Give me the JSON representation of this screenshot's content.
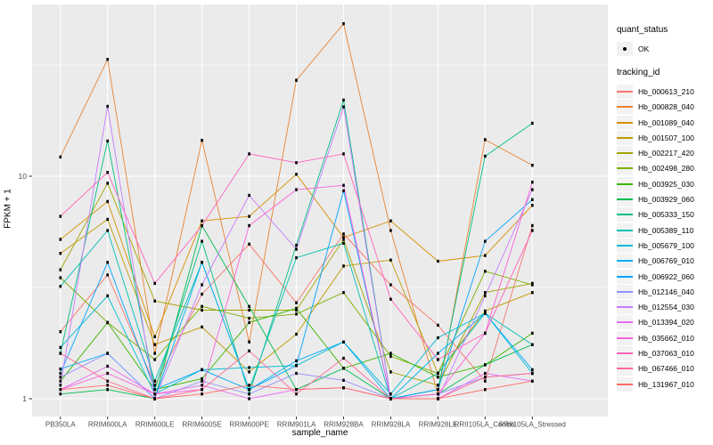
{
  "figure": {
    "background": "#FFFFFF",
    "panel_background": "#EBEBEB",
    "gridline_color": "#FFFFFF",
    "tick_color": "#333333",
    "tick_label_color": "#4D4D4D",
    "axis_title_color": "#000000",
    "point_color": "#000000",
    "legend_key_background": "#F2F2F2"
  },
  "chart_data": {
    "type": "line",
    "title": "",
    "xlabel": "sample_name",
    "ylabel": "FPKM + 1",
    "y_scale": "log10",
    "y_ticks": [
      1,
      10
    ],
    "y_tick_labels": [
      "1",
      "10"
    ],
    "y_minor_ticks": [
      3.162,
      31.62
    ],
    "ylim": [
      0.83,
      59
    ],
    "grid": true,
    "legend_position": "right",
    "categories": [
      "PB350LA",
      "RRIM600LA",
      "RRIM600LE",
      "RRIM600SE",
      "RRIM600PE",
      "RRIM901LA",
      "RRIM928BA",
      "RRIM928LA",
      "RRIM928LE",
      "RRII105LA_Control",
      "RRII105LA_Stressed"
    ],
    "legend": {
      "quant_status_title": "quant_status",
      "quant_status_items": [
        {
          "label": "OK",
          "marker": "point"
        }
      ],
      "tracking_id_title": "tracking_id"
    },
    "series": [
      {
        "name": "Hb_000613_210",
        "color": "#F8766D",
        "values": [
          2.0,
          3.6,
          1.15,
          2.95,
          4.95,
          2.7,
          5.5,
          3.25,
          2.14,
          1.2,
          6.0
        ]
      },
      {
        "name": "Hb_000828_040",
        "color": "#EA8331",
        "values": [
          12.2,
          33.5,
          1.6,
          14.5,
          1.8,
          27.0,
          48.5,
          5.7,
          1.05,
          14.6,
          11.2
        ]
      },
      {
        "name": "Hb_001089_040",
        "color": "#D89000",
        "values": [
          5.2,
          7.7,
          1.9,
          6.3,
          6.6,
          10.2,
          5.3,
          6.3,
          4.15,
          4.4,
          7.4
        ]
      },
      {
        "name": "Hb_001507_100",
        "color": "#C09B00",
        "values": [
          4.5,
          6.4,
          1.75,
          2.1,
          1.32,
          1.95,
          3.95,
          4.2,
          1.3,
          2.48,
          3.0
        ]
      },
      {
        "name": "Hb_002217_420",
        "color": "#A3A500",
        "values": [
          3.8,
          9.3,
          2.75,
          2.5,
          2.5,
          2.5,
          5.2,
          1.32,
          1.15,
          3.0,
          3.3
        ]
      },
      {
        "name": "Hb_002498_280",
        "color": "#7CAE00",
        "values": [
          3.5,
          2.2,
          1.5,
          2.6,
          2.3,
          2.4,
          3.0,
          1.55,
          1.3,
          3.74,
          3.25
        ]
      },
      {
        "name": "Hb_003925_030",
        "color": "#39B600",
        "values": [
          1.2,
          2.2,
          1.1,
          1.23,
          2.2,
          2.55,
          1.37,
          1.6,
          1.25,
          1.42,
          1.97
        ]
      },
      {
        "name": "Hb_003929_060",
        "color": "#00BB4E",
        "values": [
          1.05,
          1.1,
          1.0,
          6.0,
          2.6,
          1.1,
          1.37,
          1.0,
          1.05,
          1.42,
          1.75
        ]
      },
      {
        "name": "Hb_005333_150",
        "color": "#00C087",
        "values": [
          1.6,
          14.4,
          1.1,
          5.1,
          1.05,
          4.9,
          22.0,
          1.0,
          1.1,
          12.3,
          17.3
        ]
      },
      {
        "name": "Hb_005389_110",
        "color": "#00C0B2",
        "values": [
          3.2,
          5.7,
          1.2,
          4.1,
          1.1,
          4.3,
          5.0,
          1.0,
          1.3,
          2.42,
          1.75
        ]
      },
      {
        "name": "Hb_005679_100",
        "color": "#00BCD8",
        "values": [
          1.7,
          2.9,
          1.05,
          1.35,
          1.38,
          1.41,
          1.8,
          1.05,
          1.88,
          2.42,
          1.3
        ]
      },
      {
        "name": "Hb_006769_010",
        "color": "#00B0F6",
        "values": [
          1.36,
          1.6,
          1.0,
          4.1,
          1.1,
          1.48,
          1.8,
          1.0,
          1.6,
          2.42,
          1.35
        ]
      },
      {
        "name": "Hb_006922_060",
        "color": "#00A5FF",
        "values": [
          1.3,
          4.1,
          1.1,
          1.35,
          1.1,
          1.41,
          8.6,
          1.0,
          1.1,
          5.1,
          7.85
        ]
      },
      {
        "name": "Hb_012146_040",
        "color": "#9590FF",
        "values": [
          1.25,
          1.6,
          1.0,
          1.2,
          1.05,
          1.3,
          1.21,
          1.0,
          1.05,
          1.25,
          1.3
        ]
      },
      {
        "name": "Hb_012554_030",
        "color": "#C77CFF",
        "values": [
          1.15,
          20.6,
          1.0,
          3.25,
          8.2,
          4.7,
          20.5,
          1.0,
          1.0,
          2.9,
          8.7
        ]
      },
      {
        "name": "Hb_013394_020",
        "color": "#E76BF3",
        "values": [
          1.1,
          1.4,
          1.05,
          1.15,
          1.0,
          1.1,
          1.12,
          1.0,
          1.0,
          1.3,
          1.2
        ]
      },
      {
        "name": "Hb_035662_010",
        "color": "#FA62DB",
        "values": [
          1.1,
          1.3,
          1.05,
          1.1,
          6.0,
          8.7,
          9.1,
          1.0,
          1.05,
          1.97,
          9.4
        ]
      },
      {
        "name": "Hb_037063_010",
        "color": "#FF62BC",
        "values": [
          6.6,
          10.4,
          3.3,
          6.0,
          12.6,
          11.5,
          12.6,
          2.8,
          1.5,
          1.97,
          5.7
        ]
      },
      {
        "name": "Hb_067466_010",
        "color": "#FF6A98",
        "values": [
          1.6,
          1.2,
          1.0,
          1.1,
          1.64,
          1.05,
          1.52,
          1.0,
          1.0,
          1.25,
          1.3
        ]
      },
      {
        "name": "Hb_131967_010",
        "color": "#FF6C67",
        "values": [
          1.1,
          1.15,
          1.0,
          1.05,
          1.15,
          1.1,
          1.12,
          1.0,
          1.0,
          1.1,
          1.2
        ]
      }
    ]
  }
}
